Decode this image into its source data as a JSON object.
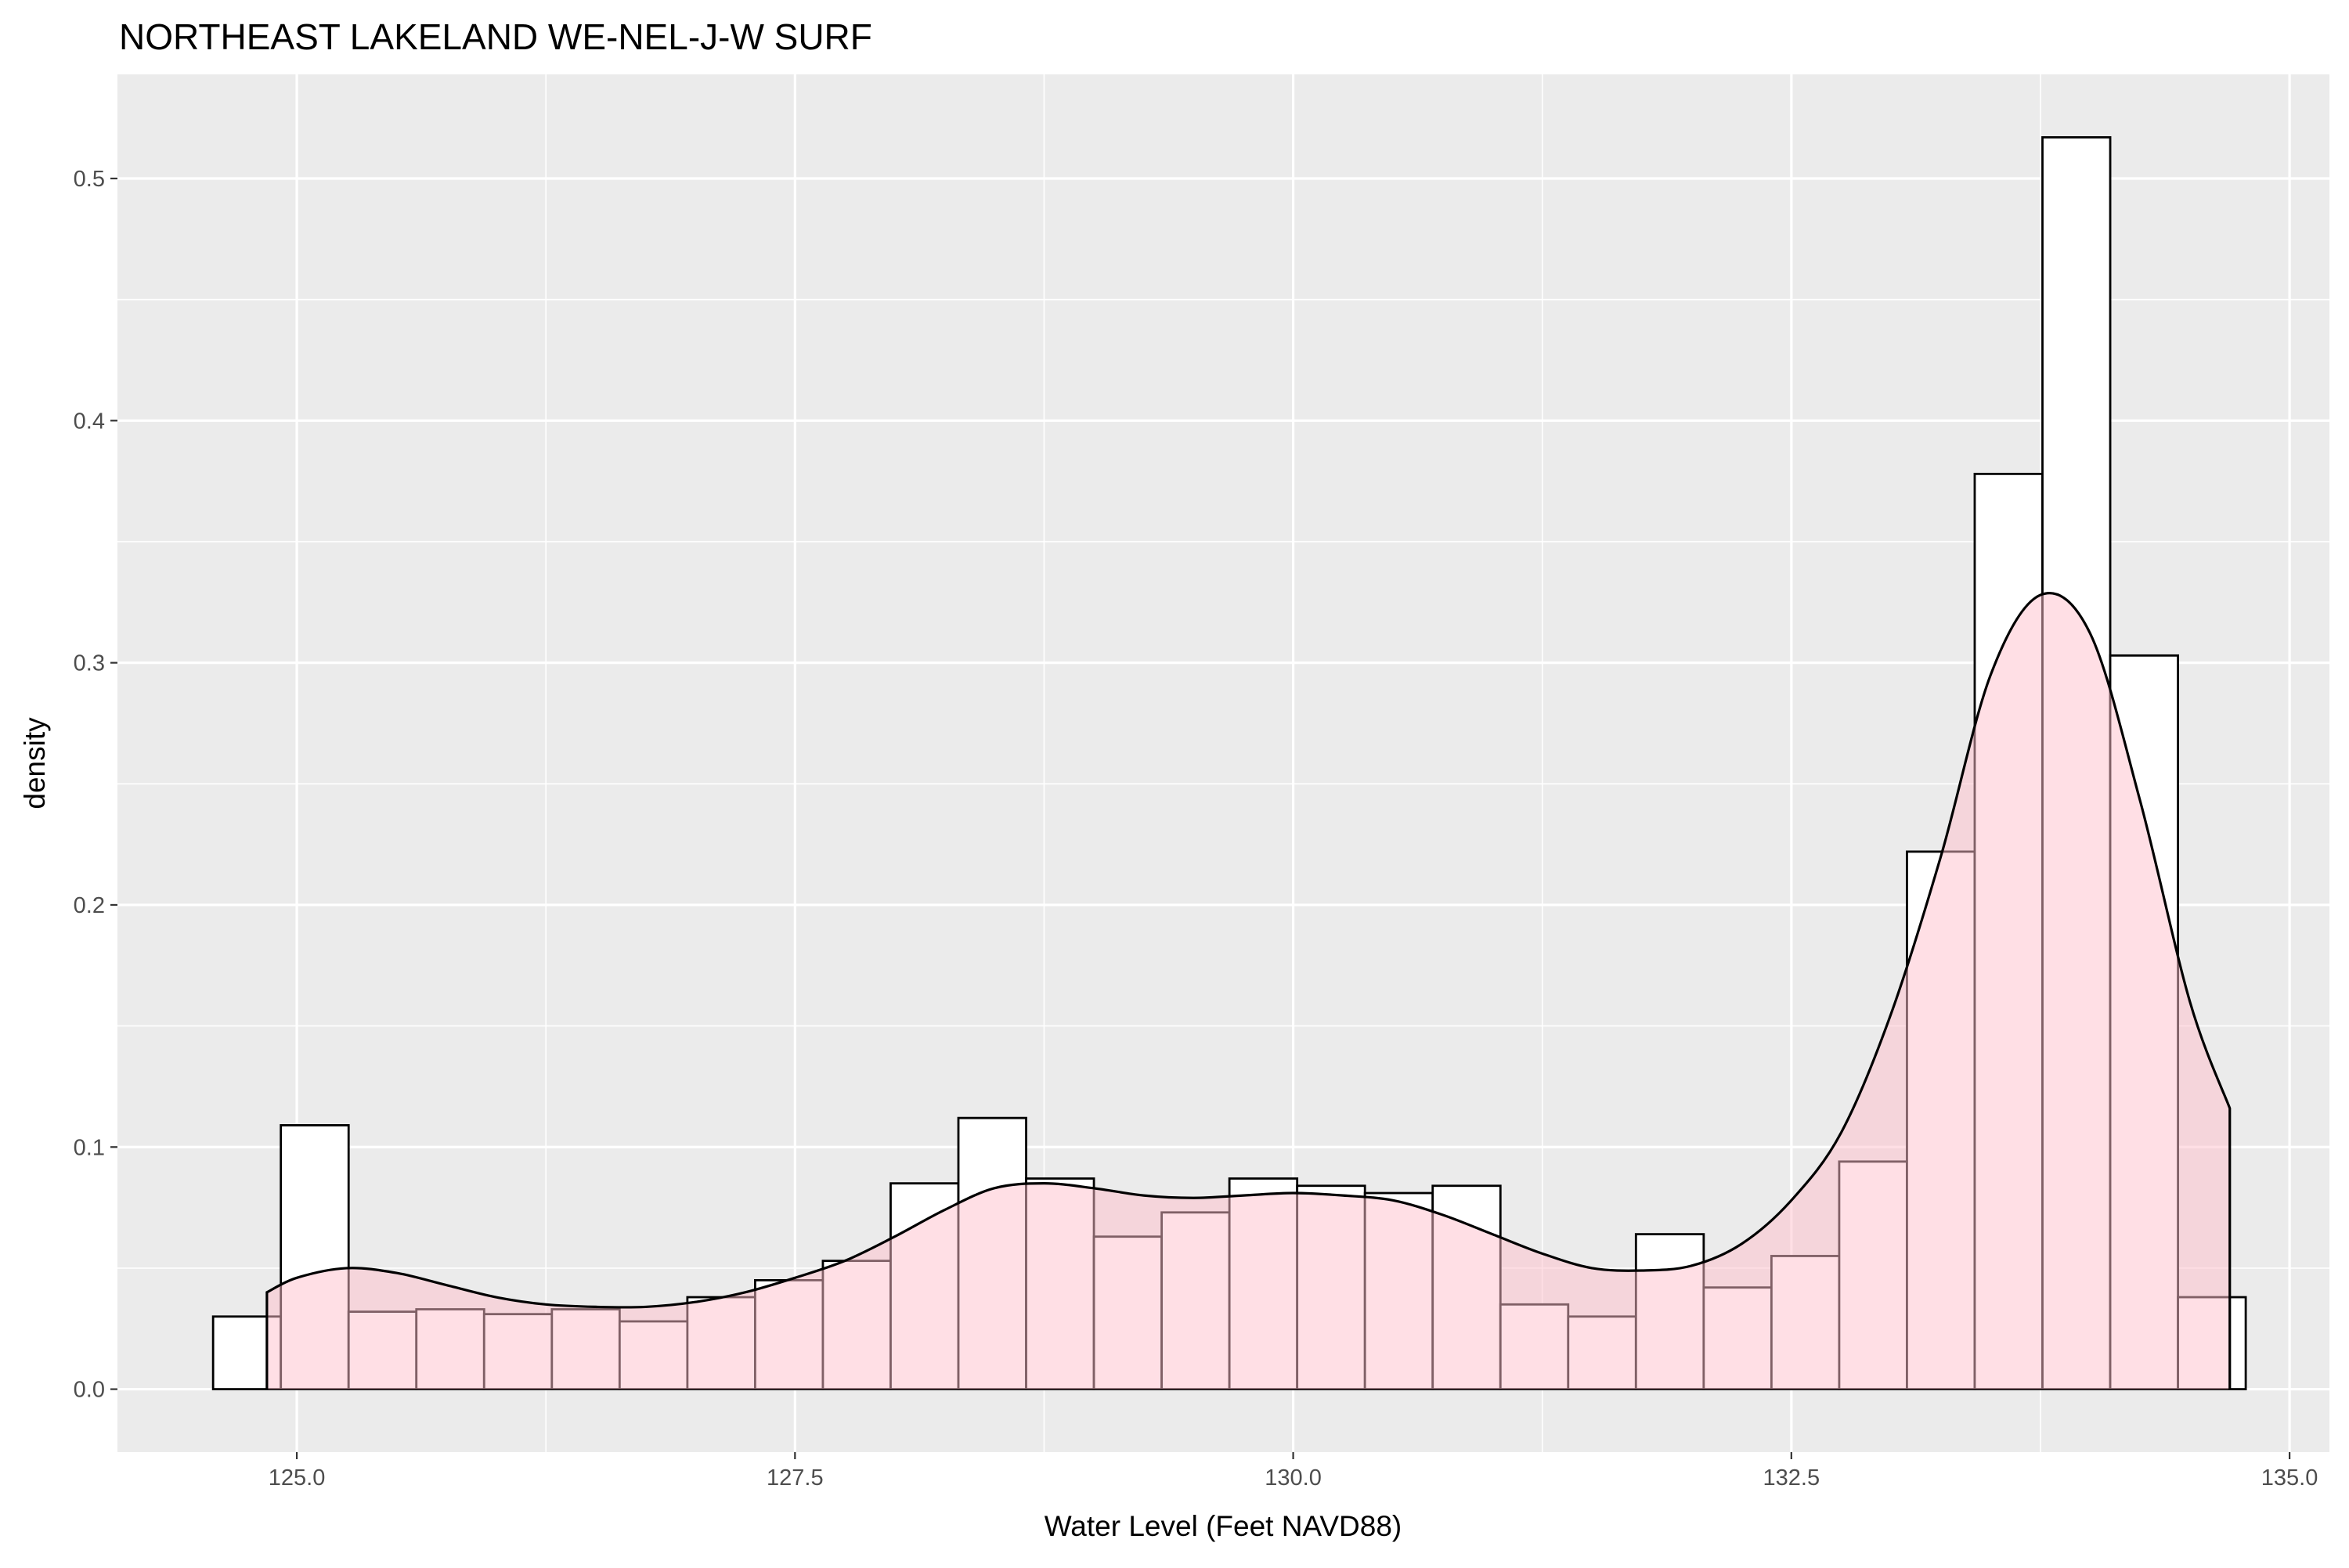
{
  "chart_data": {
    "type": "histogram",
    "title": "NORTHEAST LAKELAND WE-NEL-J-W SURF",
    "xlabel": "Water Level (Feet NAVD88)",
    "ylabel": "density",
    "xlim": [
      124.1,
      135.2
    ],
    "ylim": [
      -0.026,
      0.543
    ],
    "x_ticks": [
      "125.0",
      "127.5",
      "130.0",
      "132.5",
      "135.0"
    ],
    "x_tick_values": [
      125.0,
      127.5,
      130.0,
      132.5,
      135.0
    ],
    "y_ticks": [
      "0.0",
      "0.1",
      "0.2",
      "0.3",
      "0.4",
      "0.5"
    ],
    "y_tick_values": [
      0.0,
      0.1,
      0.2,
      0.3,
      0.4,
      0.5
    ],
    "grid": true,
    "bin_width": 0.34,
    "bins": [
      {
        "x0": 124.58,
        "x1": 124.92,
        "density": 0.03
      },
      {
        "x0": 124.92,
        "x1": 125.26,
        "density": 0.109
      },
      {
        "x0": 125.26,
        "x1": 125.6,
        "density": 0.032
      },
      {
        "x0": 125.6,
        "x1": 125.94,
        "density": 0.033
      },
      {
        "x0": 125.94,
        "x1": 126.28,
        "density": 0.031
      },
      {
        "x0": 126.28,
        "x1": 126.62,
        "density": 0.033
      },
      {
        "x0": 126.62,
        "x1": 126.96,
        "density": 0.028
      },
      {
        "x0": 126.96,
        "x1": 127.3,
        "density": 0.038
      },
      {
        "x0": 127.3,
        "x1": 127.64,
        "density": 0.045
      },
      {
        "x0": 127.64,
        "x1": 127.98,
        "density": 0.053
      },
      {
        "x0": 127.98,
        "x1": 128.32,
        "density": 0.085
      },
      {
        "x0": 128.32,
        "x1": 128.66,
        "density": 0.112
      },
      {
        "x0": 128.66,
        "x1": 129.0,
        "density": 0.087
      },
      {
        "x0": 129.0,
        "x1": 129.34,
        "density": 0.063
      },
      {
        "x0": 129.34,
        "x1": 129.68,
        "density": 0.073
      },
      {
        "x0": 129.68,
        "x1": 130.02,
        "density": 0.087
      },
      {
        "x0": 130.02,
        "x1": 130.36,
        "density": 0.084
      },
      {
        "x0": 130.36,
        "x1": 130.7,
        "density": 0.081
      },
      {
        "x0": 130.7,
        "x1": 131.04,
        "density": 0.084
      },
      {
        "x0": 131.04,
        "x1": 131.38,
        "density": 0.035
      },
      {
        "x0": 131.38,
        "x1": 131.72,
        "density": 0.03
      },
      {
        "x0": 131.72,
        "x1": 132.06,
        "density": 0.064
      },
      {
        "x0": 132.06,
        "x1": 132.4,
        "density": 0.042
      },
      {
        "x0": 132.4,
        "x1": 132.74,
        "density": 0.055
      },
      {
        "x0": 132.74,
        "x1": 133.08,
        "density": 0.094
      },
      {
        "x0": 133.08,
        "x1": 133.42,
        "density": 0.222
      },
      {
        "x0": 133.42,
        "x1": 133.76,
        "density": 0.378
      },
      {
        "x0": 133.76,
        "x1": 134.1,
        "density": 0.517
      },
      {
        "x0": 134.1,
        "x1": 134.44,
        "density": 0.303
      },
      {
        "x0": 134.44,
        "x1": 134.78,
        "density": 0.038
      }
    ],
    "density_curve": {
      "x": [
        124.85,
        125.0,
        125.25,
        125.5,
        125.75,
        126.0,
        126.25,
        126.5,
        126.75,
        127.0,
        127.25,
        127.5,
        127.75,
        128.0,
        128.25,
        128.5,
        128.75,
        129.0,
        129.25,
        129.5,
        129.75,
        130.0,
        130.25,
        130.5,
        130.75,
        131.0,
        131.25,
        131.5,
        131.75,
        132.0,
        132.25,
        132.5,
        132.75,
        133.0,
        133.25,
        133.5,
        133.75,
        134.0,
        134.25,
        134.5,
        134.7
      ],
      "y": [
        0.04,
        0.046,
        0.05,
        0.048,
        0.043,
        0.038,
        0.035,
        0.034,
        0.034,
        0.036,
        0.04,
        0.046,
        0.053,
        0.063,
        0.074,
        0.083,
        0.085,
        0.083,
        0.08,
        0.079,
        0.08,
        0.081,
        0.08,
        0.078,
        0.072,
        0.064,
        0.056,
        0.05,
        0.049,
        0.051,
        0.06,
        0.078,
        0.106,
        0.155,
        0.22,
        0.295,
        0.328,
        0.312,
        0.243,
        0.16,
        0.116
      ]
    },
    "colors": {
      "panel_background": "#ebebeb",
      "grid": "#ffffff",
      "bar_fill": "#ffffff",
      "bar_stroke": "#000000",
      "density_fill": "#ffc0cb",
      "density_fill_opacity": 0.5,
      "density_stroke": "#000000"
    }
  }
}
